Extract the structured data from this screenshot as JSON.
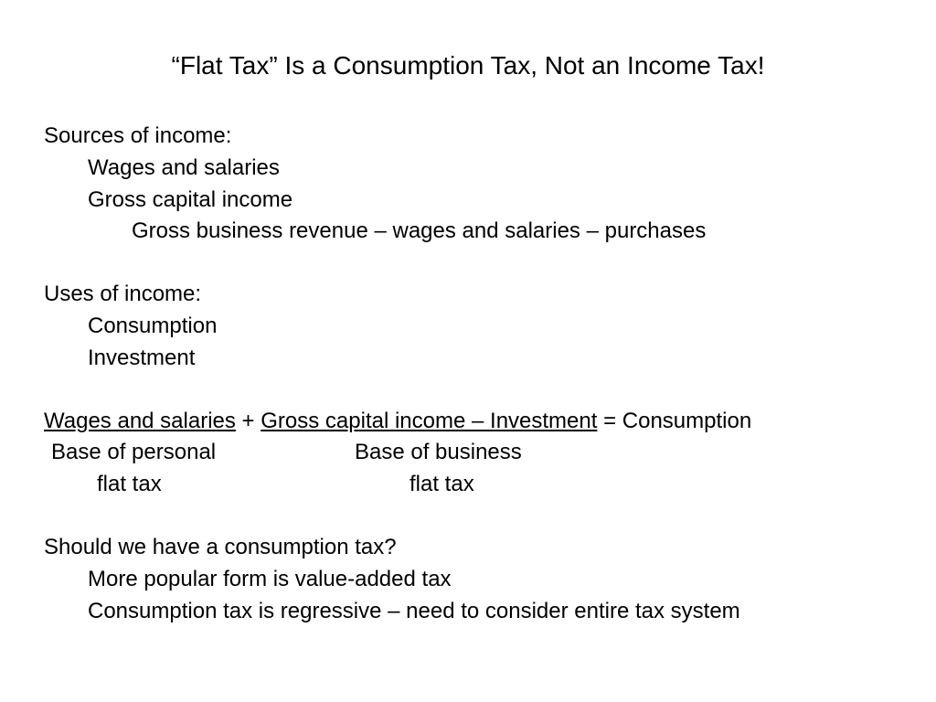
{
  "title": "“Flat Tax” Is a Consumption Tax, Not an Income Tax!",
  "section1": {
    "heading": "Sources of income:",
    "items": [
      "Wages and salaries",
      "Gross capital income"
    ],
    "subitem": "Gross business revenue – wages and salaries – purchases"
  },
  "section2": {
    "heading": "Uses of income:",
    "items": [
      "Consumption",
      "Investment"
    ]
  },
  "equation": {
    "term1": "Wages and salaries",
    "plus": " + ",
    "term2": "Gross capital income – Investment",
    "equals": " = ",
    "result": "Consumption",
    "label_a_line1": "Base of personal",
    "label_a_line2": "flat tax",
    "label_b_line1": "Base of business",
    "label_b_line2": "flat tax"
  },
  "section3": {
    "heading": "Should we have a consumption tax?",
    "items": [
      "More popular form is value-added tax",
      "Consumption tax is regressive – need to consider entire tax system"
    ]
  },
  "colors": {
    "background": "#ffffff",
    "text": "#000000"
  },
  "font": {
    "family": "Arial",
    "title_size_pt": 28,
    "body_size_pt": 24
  }
}
